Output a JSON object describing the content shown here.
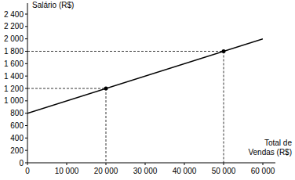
{
  "chart_data": {
    "type": "line",
    "y_label": "Salário (R$)",
    "x_label": [
      "Total de",
      "Vendas (R$)"
    ],
    "series": [
      {
        "type": "line",
        "color": "#000000",
        "x": [
          0,
          60000
        ],
        "values": [
          800,
          2000
        ]
      },
      {
        "type": "scatter",
        "color": "#000000",
        "marker": "circle",
        "line_style": "dashed",
        "x": [
          20000,
          50000
        ],
        "values": [
          1200,
          1800
        ]
      }
    ],
    "xlim": [
      0,
      60000
    ],
    "ylim": [
      0,
      2400
    ],
    "xticks": [
      0,
      {
        "value": 10000,
        "label": "10 000"
      },
      {
        "value": 20000,
        "label": "20 000"
      },
      {
        "value": 30000,
        "label": "30 000"
      },
      {
        "value": 40000,
        "label": "40 000"
      },
      {
        "value": 50000,
        "label": "50 000"
      },
      {
        "value": 60000,
        "label": "60 000"
      }
    ],
    "yticks": [
      0,
      200,
      400,
      600,
      800,
      {
        "value": 1000,
        "label": "1 000"
      },
      {
        "value": 1200,
        "label": "1 200"
      },
      {
        "value": 1400,
        "label": "1 400"
      },
      {
        "value": 1600,
        "label": "1 600"
      },
      {
        "value": 1800,
        "label": "1 800"
      },
      {
        "value": 2000,
        "label": "2 000"
      },
      {
        "value": 2200,
        "label": "2 200"
      },
      {
        "value": 2400,
        "label": "2 400"
      }
    ],
    "grid": false
  }
}
